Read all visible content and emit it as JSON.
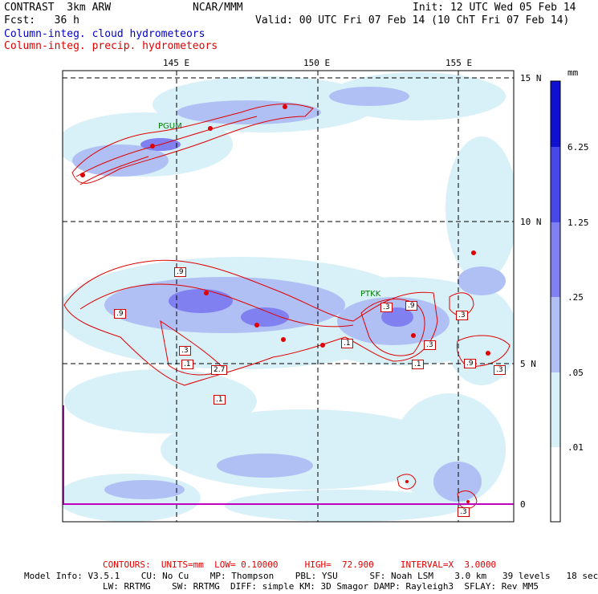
{
  "header": {
    "title_left": "CONTRAST  3km ARW",
    "title_center": "NCAR/MMM",
    "init": "Init: 12 UTC Wed 05 Feb 14",
    "fcst": "Fcst:   36 h",
    "valid": "Valid: 00 UTC Fri 07 Feb 14 (10 ChT Fri 07 Feb 14)",
    "legend_cloud": "Column-integ. cloud hydrometeors",
    "legend_precip": "Column-integ. precip. hydrometeors"
  },
  "map": {
    "lon_labels": [
      "145 E",
      "150 E",
      "155 E"
    ],
    "lat_labels": [
      "15 N",
      "10 N",
      "5 N",
      "0"
    ],
    "stations": [
      "PGUM",
      "PTKK"
    ],
    "contour_labels": [
      ".9",
      ".9",
      ".3",
      ".9",
      ".1",
      ".3",
      ".3",
      ".1",
      ".1",
      ".3",
      ".9",
      ".3",
      "2.7",
      ".1",
      ".3"
    ]
  },
  "colorbar": {
    "unit": "mm",
    "labels": [
      "6.25",
      "1.25",
      ".25",
      ".05",
      ".01"
    ],
    "colors": [
      "#1010d0",
      "#4848e8",
      "#8080f0",
      "#b0c0f4",
      "#d8f0f8",
      "#ffffff"
    ]
  },
  "footer": {
    "contours": "CONTOURS:  UNITS=mm  LOW= 0.10000     HIGH=  72.900     INTERVAL=X  3.0000",
    "model_line1": "Model Info: V3.5.1    CU: No Cu    MP: Thompson    PBL: YSU      SF: Noah LSM    3.0 km   39 levels   18 sec",
    "model_line2": "LW: RRTMG    SW: RRTMG  DIFF: simple KM: 3D Smagor DAMP: Rayleigh3  SFLAY: Rev MM5"
  }
}
